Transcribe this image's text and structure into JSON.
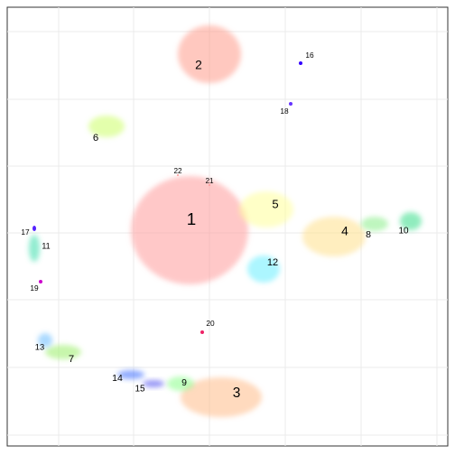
{
  "chart_data": {
    "type": "scatter",
    "grid": true,
    "xlim": [
      8,
      496
    ],
    "ylim": [
      494,
      8
    ],
    "xticks": [
      65,
      148,
      232,
      316,
      400,
      484
    ],
    "yticks": [
      35,
      110,
      184,
      258,
      332,
      407,
      482
    ],
    "clusters": [
      {
        "name": "1",
        "color": "#ff9a9a",
        "x": 210,
        "y": 255,
        "rx": 65,
        "ry": 60,
        "label_x": 212,
        "label_y": 244
      },
      {
        "name": "2",
        "color": "#ff9a8a",
        "x": 232,
        "y": 60,
        "rx": 35,
        "ry": 32,
        "label_x": 220,
        "label_y": 73
      },
      {
        "name": "3",
        "color": "#ffbb88",
        "x": 245,
        "y": 440,
        "rx": 45,
        "ry": 22,
        "label_x": 262,
        "label_y": 436
      },
      {
        "name": "4",
        "color": "#ffe08a",
        "x": 370,
        "y": 262,
        "rx": 35,
        "ry": 22,
        "label_x": 382,
        "label_y": 257
      },
      {
        "name": "5",
        "color": "#ffff99",
        "x": 295,
        "y": 232,
        "rx": 30,
        "ry": 20,
        "label_x": 305,
        "label_y": 227
      },
      {
        "name": "6",
        "color": "#ccff66",
        "x": 118,
        "y": 140,
        "rx": 20,
        "ry": 12,
        "label_x": 106,
        "label_y": 153
      },
      {
        "name": "7",
        "color": "#99ee66",
        "x": 70,
        "y": 390,
        "rx": 20,
        "ry": 8,
        "label_x": 79,
        "label_y": 398
      },
      {
        "name": "8",
        "color": "#88ee88",
        "x": 415,
        "y": 248,
        "rx": 15,
        "ry": 8,
        "label_x": 408,
        "label_y": 260
      },
      {
        "name": "9",
        "color": "#88ff88",
        "x": 200,
        "y": 425,
        "rx": 15,
        "ry": 8,
        "label_x": 204,
        "label_y": 424
      },
      {
        "name": "10",
        "color": "#33dd88",
        "x": 455,
        "y": 245,
        "rx": 12,
        "ry": 10,
        "label_x": 447,
        "label_y": 256
      },
      {
        "name": "11",
        "color": "#33ddaa",
        "x": 38,
        "y": 275,
        "rx": 6,
        "ry": 15,
        "label_x": 51,
        "label_y": 273
      },
      {
        "name": "12",
        "color": "#66eeff",
        "x": 292,
        "y": 298,
        "rx": 18,
        "ry": 15,
        "label_x": 302,
        "label_y": 291
      },
      {
        "name": "13",
        "color": "#66bbff",
        "x": 50,
        "y": 377,
        "rx": 8,
        "ry": 8,
        "label_x": 44,
        "label_y": 385
      },
      {
        "name": "14",
        "color": "#3366ff",
        "x": 145,
        "y": 415,
        "rx": 15,
        "ry": 5,
        "label_x": 130,
        "label_y": 419
      },
      {
        "name": "15",
        "color": "#4444ee",
        "x": 170,
        "y": 425,
        "rx": 12,
        "ry": 4,
        "label_x": 155,
        "label_y": 431
      },
      {
        "name": "16",
        "color": "#3300ff",
        "x": 333,
        "y": 70,
        "rx": 2,
        "ry": 2,
        "label_x": 343,
        "label_y": 62
      },
      {
        "name": "17",
        "color": "#5522ff",
        "x": 38,
        "y": 253,
        "rx": 2,
        "ry": 3,
        "label_x": 28,
        "label_y": 258
      },
      {
        "name": "18",
        "color": "#6633ff",
        "x": 322,
        "y": 115,
        "rx": 2,
        "ry": 2,
        "label_x": 315,
        "label_y": 124
      },
      {
        "name": "19",
        "color": "#cc00cc",
        "x": 45,
        "y": 312,
        "rx": 2,
        "ry": 2,
        "label_x": 38,
        "label_y": 320
      },
      {
        "name": "20",
        "color": "#ee2266",
        "x": 224,
        "y": 368,
        "rx": 2,
        "ry": 2,
        "label_x": 233,
        "label_y": 359
      },
      {
        "name": "21",
        "color": "#ff9a9a",
        "x": 232,
        "y": 205,
        "rx": 1,
        "ry": 1,
        "label_x": 232,
        "label_y": 201
      },
      {
        "name": "22",
        "color": "#ff9a9a",
        "x": 197,
        "y": 194,
        "rx": 1,
        "ry": 1,
        "label_x": 197,
        "label_y": 190
      }
    ]
  }
}
